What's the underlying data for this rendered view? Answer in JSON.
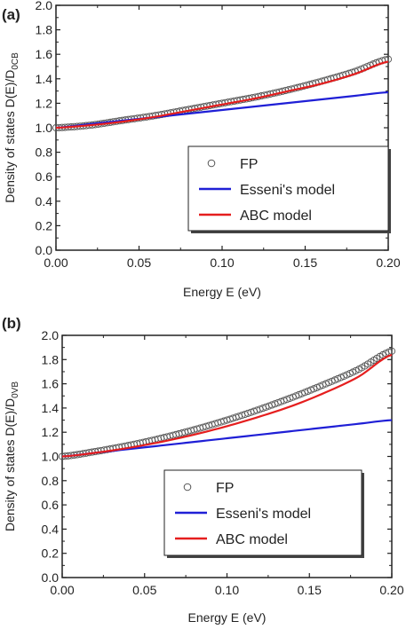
{
  "chart_data": [
    {
      "type": "line",
      "panel": "(a)",
      "xlabel": "Energy E (eV)",
      "ylabel_main": "Density of states D(E)/D",
      "ylabel_sub": "0CB",
      "xlim": [
        0.0,
        0.2
      ],
      "ylim": [
        0.0,
        2.0
      ],
      "xticks": [
        "0.00",
        "0.05",
        "0.10",
        "0.15",
        "0.20"
      ],
      "yticks": [
        "0.0",
        "0.2",
        "0.4",
        "0.6",
        "0.8",
        "1.0",
        "1.2",
        "1.4",
        "1.6",
        "1.8",
        "2.0"
      ],
      "legend_position": "lower-right",
      "x": [
        0.0,
        0.02,
        0.04,
        0.06,
        0.08,
        0.1,
        0.12,
        0.14,
        0.16,
        0.18,
        0.2
      ],
      "series": [
        {
          "name": "FP",
          "style": "markers",
          "color": "#555555",
          "values": [
            1.0,
            1.02,
            1.06,
            1.1,
            1.15,
            1.2,
            1.25,
            1.31,
            1.38,
            1.46,
            1.56
          ]
        },
        {
          "name": "Esseni's model",
          "style": "line",
          "color": "#1f1fd6",
          "values": [
            1.0,
            1.029,
            1.058,
            1.087,
            1.116,
            1.145,
            1.174,
            1.203,
            1.232,
            1.261,
            1.29
          ]
        },
        {
          "name": "ABC model",
          "style": "line",
          "color": "#e51e1e",
          "values": [
            1.0,
            1.02,
            1.05,
            1.09,
            1.14,
            1.19,
            1.24,
            1.3,
            1.36,
            1.44,
            1.54
          ]
        }
      ]
    },
    {
      "type": "line",
      "panel": "(b)",
      "xlabel": "Energy E (eV)",
      "ylabel_main": "Density of states D(E)/D",
      "ylabel_sub": "0VB",
      "xlim": [
        0.0,
        0.2
      ],
      "ylim": [
        0.0,
        2.0
      ],
      "xticks": [
        "0.00",
        "0.05",
        "0.10",
        "0.15",
        "0.20"
      ],
      "yticks": [
        "0.0",
        "0.2",
        "0.4",
        "0.6",
        "0.8",
        "1.0",
        "1.2",
        "1.4",
        "1.6",
        "1.8",
        "2.0"
      ],
      "legend_position": "lower-right",
      "x": [
        0.0,
        0.02,
        0.04,
        0.06,
        0.08,
        0.1,
        0.12,
        0.14,
        0.16,
        0.18,
        0.2
      ],
      "series": [
        {
          "name": "FP",
          "style": "markers",
          "color": "#555555",
          "values": [
            1.0,
            1.04,
            1.09,
            1.15,
            1.22,
            1.3,
            1.39,
            1.49,
            1.6,
            1.72,
            1.87
          ]
        },
        {
          "name": "Esseni's model",
          "style": "line",
          "color": "#1f1fd6",
          "values": [
            1.0,
            1.03,
            1.06,
            1.09,
            1.12,
            1.15,
            1.18,
            1.21,
            1.24,
            1.27,
            1.3
          ]
        },
        {
          "name": "ABC model",
          "style": "line",
          "color": "#e51e1e",
          "values": [
            1.0,
            1.03,
            1.07,
            1.12,
            1.18,
            1.25,
            1.33,
            1.42,
            1.53,
            1.66,
            1.84
          ]
        }
      ]
    }
  ]
}
